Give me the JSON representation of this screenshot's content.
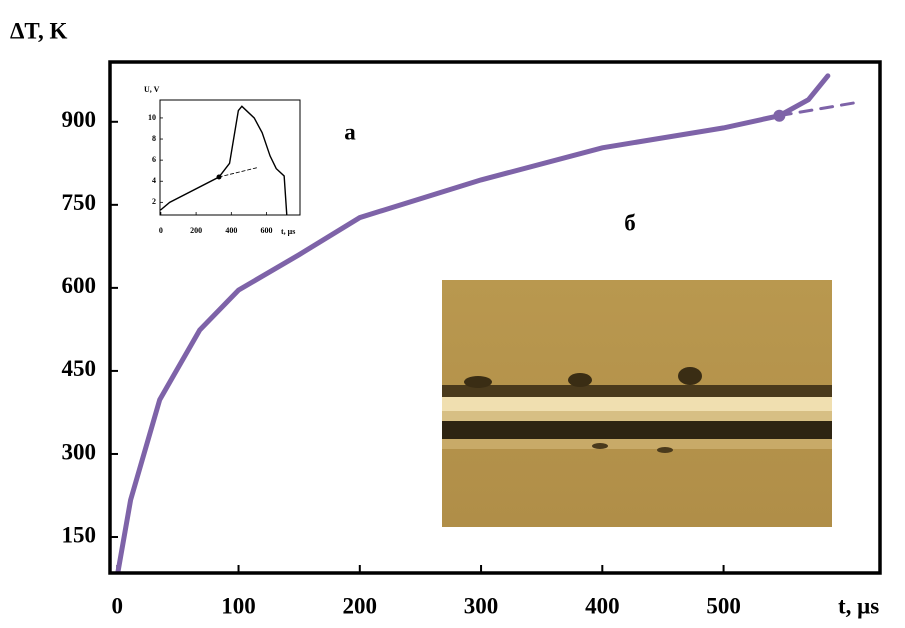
{
  "chart_data": [
    {
      "type": "line",
      "x_label": "t, μs",
      "y_label": "ΔT, K",
      "annotations": [
        "а",
        "б"
      ],
      "xlim": [
        -6,
        629
      ],
      "ylim": [
        85,
        1008
      ],
      "xticks": [
        0,
        100,
        200,
        300,
        400,
        500
      ],
      "yticks": [
        150,
        300,
        450,
        600,
        750,
        900
      ],
      "series": [
        {
          "color": "#7e63a8",
          "dashed": false,
          "x": [
            0,
            11,
            35,
            68,
            100,
            150,
            200,
            300,
            400,
            500,
            546,
            570,
            586
          ],
          "values": [
            80,
            217,
            398,
            524,
            596,
            660,
            727,
            795,
            853,
            889,
            911,
            940,
            983
          ]
        },
        {
          "color": "#7e63a8",
          "dashed": true,
          "x": [
            546,
            610
          ],
          "values": [
            911,
            935
          ]
        }
      ],
      "marker": {
        "x": 546,
        "value": 911,
        "color": "#7e63a8"
      }
    },
    {
      "type": "line",
      "x_label": "t, μs",
      "y_label": "U, V",
      "xlim": [
        -5,
        790
      ],
      "ylim": [
        0.8,
        11.7
      ],
      "xticks": [
        0,
        200,
        400,
        600
      ],
      "yticks": [
        2,
        4,
        6,
        8,
        10
      ],
      "series": [
        {
          "color": "#000000",
          "dashed": false,
          "x": [
            0,
            50,
            330,
            390,
            440,
            460,
            530,
            575,
            620,
            655,
            700,
            715
          ],
          "values": [
            1.3,
            2,
            4.4,
            5.7,
            10.7,
            11.1,
            10,
            8.6,
            6.4,
            5.2,
            4.5,
            0.8
          ]
        },
        {
          "color": "#000000",
          "dashed": true,
          "x": [
            330,
            550
          ],
          "values": [
            4.4,
            5.3
          ]
        }
      ],
      "marker": {
        "x": 330,
        "value": 4.4,
        "color": "#000000"
      }
    }
  ]
}
